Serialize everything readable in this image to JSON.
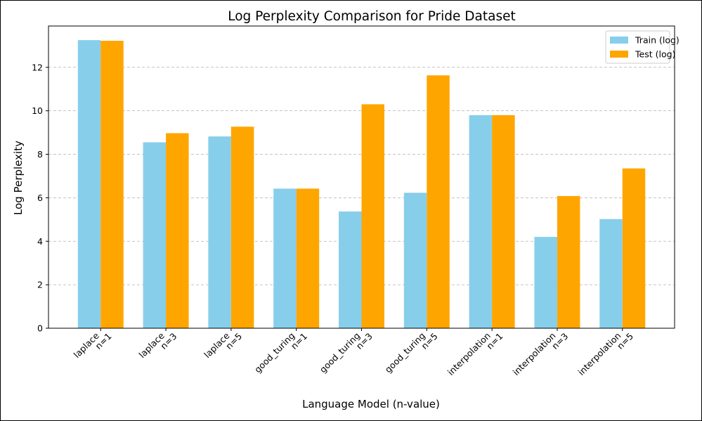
{
  "chart_data": {
    "type": "bar",
    "title": "Log Perplexity Comparison for Pride Dataset",
    "xlabel": "Language Model (n-value)",
    "ylabel": "Log Perplexity",
    "ylim": [
      0,
      13.9
    ],
    "yticks": [
      0,
      2,
      4,
      6,
      8,
      10,
      12
    ],
    "grid": "y-dashed",
    "legend_position": "top-right",
    "categories": [
      [
        "laplace",
        "n=1"
      ],
      [
        "laplace",
        "n=3"
      ],
      [
        "laplace",
        "n=5"
      ],
      [
        "good_turing",
        "n=1"
      ],
      [
        "good_turing",
        "n=3"
      ],
      [
        "good_turing",
        "n=5"
      ],
      [
        "interpolation",
        "n=1"
      ],
      [
        "interpolation",
        "n=3"
      ],
      [
        "interpolation",
        "n=5"
      ]
    ],
    "series": [
      {
        "name": "Train (log)",
        "color": "#87ceeb",
        "values": [
          13.25,
          8.55,
          8.82,
          6.42,
          5.37,
          6.23,
          9.8,
          4.2,
          5.02
        ]
      },
      {
        "name": "Test (log)",
        "color": "#ffa500",
        "values": [
          13.22,
          8.97,
          9.27,
          6.42,
          10.3,
          11.63,
          9.8,
          6.08,
          7.35
        ]
      }
    ]
  }
}
